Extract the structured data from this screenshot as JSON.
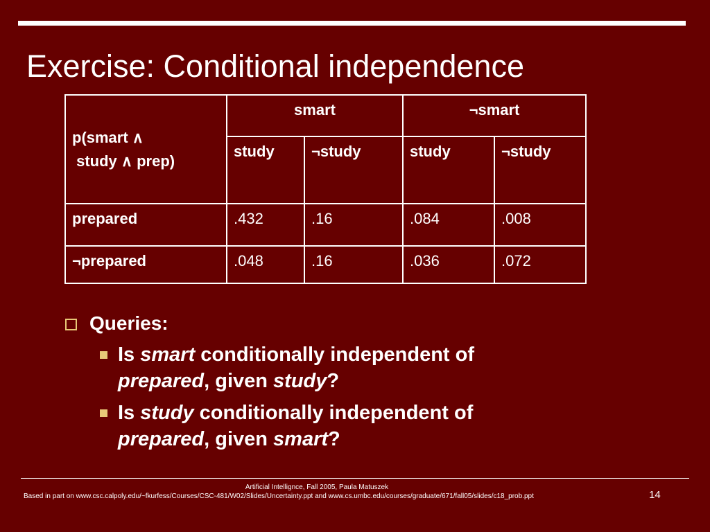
{
  "title": "Exercise: Conditional independence",
  "table": {
    "corner_line1": "p(smart ∧",
    "corner_line2": " study ∧ prep)",
    "group_headers": [
      "smart",
      "¬smart"
    ],
    "sub_headers": [
      "study",
      "¬study",
      "study",
      "¬study"
    ],
    "rows": [
      {
        "label": "prepared",
        "values": [
          ".432",
          ".16",
          ".084",
          ".008"
        ]
      },
      {
        "label": "¬prepared",
        "values": [
          ".048",
          ".16",
          ".036",
          ".072"
        ]
      }
    ]
  },
  "queries": {
    "heading": "Queries:",
    "items": [
      {
        "prefix": "Is ",
        "term1": "smart",
        "middle": " conditionally independent of ",
        "term2": "prepared",
        "given": ", given ",
        "term3": "study",
        "suffix": "?"
      },
      {
        "prefix": "Is ",
        "term1": "study",
        "middle": " conditionally independent of ",
        "term2": "prepared",
        "given": ", given ",
        "term3": "smart",
        "suffix": "?"
      }
    ]
  },
  "footer": {
    "credit": "Artificial Intellignce, Fall 2005, Paula Matuszek",
    "source": "Based in part on www.csc.calpoly.edu/~fkurfess/Courses/CSC-481/W02/Slides/Uncertainty.ppt and www.cs.umbc.edu/courses/graduate/671/fall05/slides/c18_prob.ppt",
    "page_number": "14"
  },
  "colors": {
    "background": "#660000",
    "text": "#ffffff",
    "bullet": "#e8c878"
  }
}
